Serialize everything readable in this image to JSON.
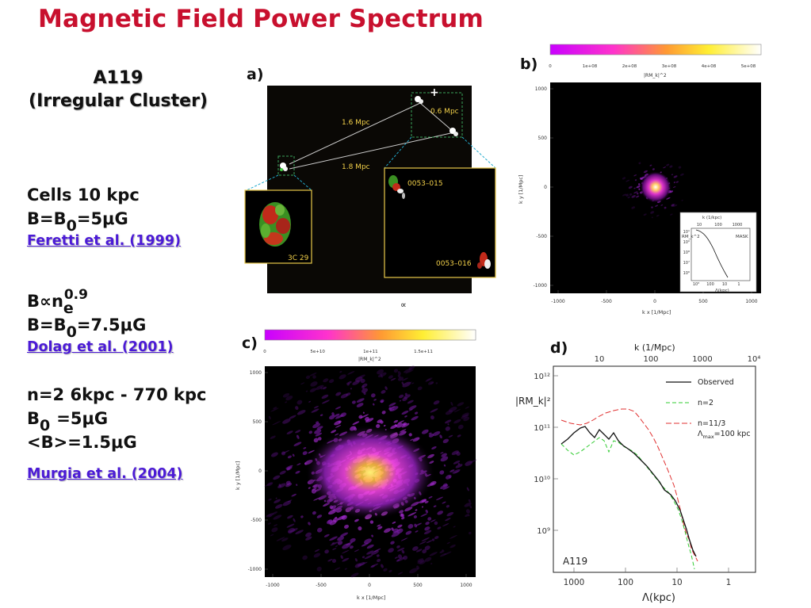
{
  "title": "Magnetic Field Power Spectrum",
  "cluster": {
    "name": "A119",
    "type": "(Irregular Cluster)"
  },
  "model1": {
    "cells": "Cells 10 kpc",
    "b_pre": "B=B",
    "b_sub": "0",
    "b_post": "=5μG",
    "ref": "Feretti et al. (1999)"
  },
  "model2": {
    "prop_pre": "B∝n",
    "prop_sub": "e",
    "prop_sup": "0.9",
    "b_pre": "B=B",
    "b_sub": "0",
    "b_post": "=7.5μG",
    "ref": "Dolag et al. (2001)"
  },
  "model3": {
    "n": "n=2  6kpc - 770 kpc",
    "b_pre": "B",
    "b_sub": "0",
    "b_post": "=5μG",
    "mean": "<B>=1.5μG",
    "ref": "Murgia et al. (2004)"
  },
  "panel_a": {
    "label": "a)",
    "dist1": "1.6 Mpc",
    "dist2": "0.6 Mpc",
    "dist3": "1.8 Mpc",
    "src1": "0053–015",
    "src2": "0053–016",
    "src3": "3C 29",
    "mark": "∝"
  },
  "panel_b": {
    "label": "b)",
    "colorbar_ticks": [
      "0",
      "1e+08",
      "2e+08",
      "3e+08",
      "4e+08",
      "5e+08"
    ],
    "colorbar_label": "|RM_k|^2",
    "yticks": [
      "1000",
      "500",
      "0",
      "-500",
      "-1000"
    ],
    "xticks": [
      "-1000",
      "-500",
      "0",
      "500",
      "1000"
    ],
    "xlabel": "k x [1/Mpc]",
    "ylabel": "k y [1/Mpc]",
    "inset": {
      "top_label": "k (1/kpc)",
      "top_ticks": [
        "10",
        "100",
        "1000"
      ],
      "ylabel": "RM_k^2",
      "yticks": [
        "10¹",
        "10⁰",
        "10⁸",
        "10⁷",
        "10⁶"
      ],
      "xticks": [
        "10³",
        "100",
        "10",
        "1"
      ],
      "xlabel": "Λ(kpc)",
      "mask": "MASK"
    }
  },
  "panel_c": {
    "label": "c)",
    "colorbar_ticks": [
      "0",
      "5e+10",
      "1e+11",
      "1.5e+11"
    ],
    "colorbar_label": "|RM_k|^2",
    "yticks": [
      "1000",
      "500",
      "0",
      "-500",
      "-1000"
    ],
    "xticks": [
      "-1000",
      "-500",
      "0",
      "500",
      "1000"
    ],
    "xlabel": "k x [1/Mpc]",
    "ylabel": "k y [1/Mpc]"
  },
  "panel_d": {
    "label": "d)",
    "top_label": "k (1/Mpc)",
    "top_ticks": [
      "10",
      "100",
      "1000",
      "10⁴"
    ],
    "ylabel": "|RM_k|²",
    "yticks": [
      "10¹²",
      "10¹¹",
      "10¹⁰",
      "10⁹"
    ],
    "xticks": [
      "1000",
      "100",
      "10",
      "1"
    ],
    "xlabel": "Λ(kpc)",
    "cluster": "A119",
    "legend": {
      "observed": "Observed",
      "n2": "n=2",
      "n113": "n=11/3",
      "lambda": "Λ",
      "lambda_sub": "max",
      "lambda_post": "=100 kpc"
    }
  },
  "colors": {
    "title": "#c8102e",
    "reference": "#4b1ad6",
    "observed": "#111111",
    "n2": "#33cc33",
    "n113": "#e03030"
  }
}
